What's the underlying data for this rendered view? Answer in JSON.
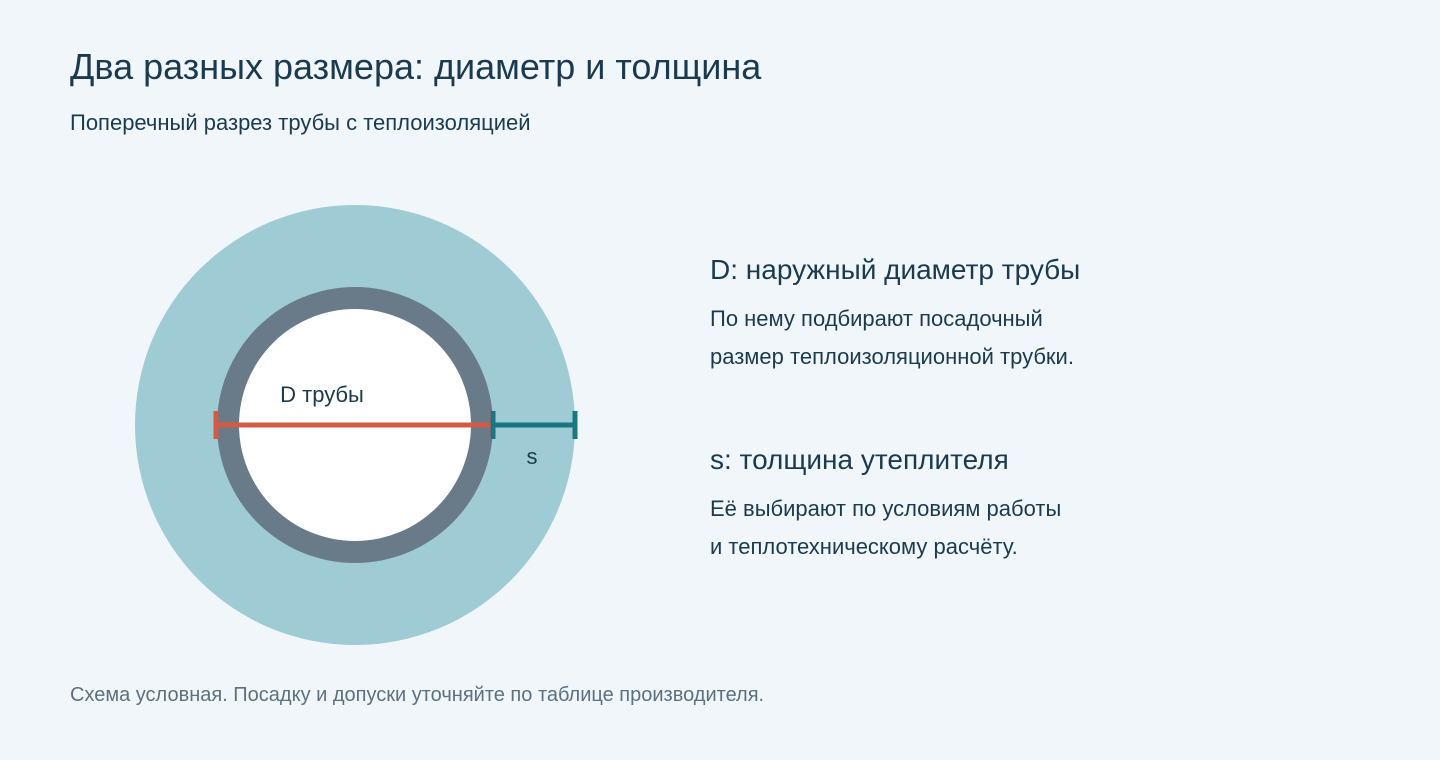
{
  "title": "Два разных размера: диаметр и толщина",
  "subtitle": "Поперечный разрез трубы с теплоизоляцией",
  "diagram": {
    "label_d": "D трубы",
    "label_s": "s",
    "colors": {
      "insulation": "#9ecbd4",
      "pipe_wall": "#697b89",
      "pipe_bore": "#ffffff",
      "diameter_line": "#d35a45",
      "thickness_line": "#1a7584"
    }
  },
  "legend": {
    "d": {
      "heading": "D: наружный диаметр трубы",
      "lines": [
        "По нему подбирают посадочный",
        "размер теплоизоляционной трубки."
      ]
    },
    "s": {
      "heading": "s: толщина утеплителя",
      "lines": [
        "Её выбирают по условиям работы",
        "и теплотехническому расчёту."
      ]
    }
  },
  "footnote": "Схема условная. Посадку и допуски уточняйте по таблице производителя."
}
